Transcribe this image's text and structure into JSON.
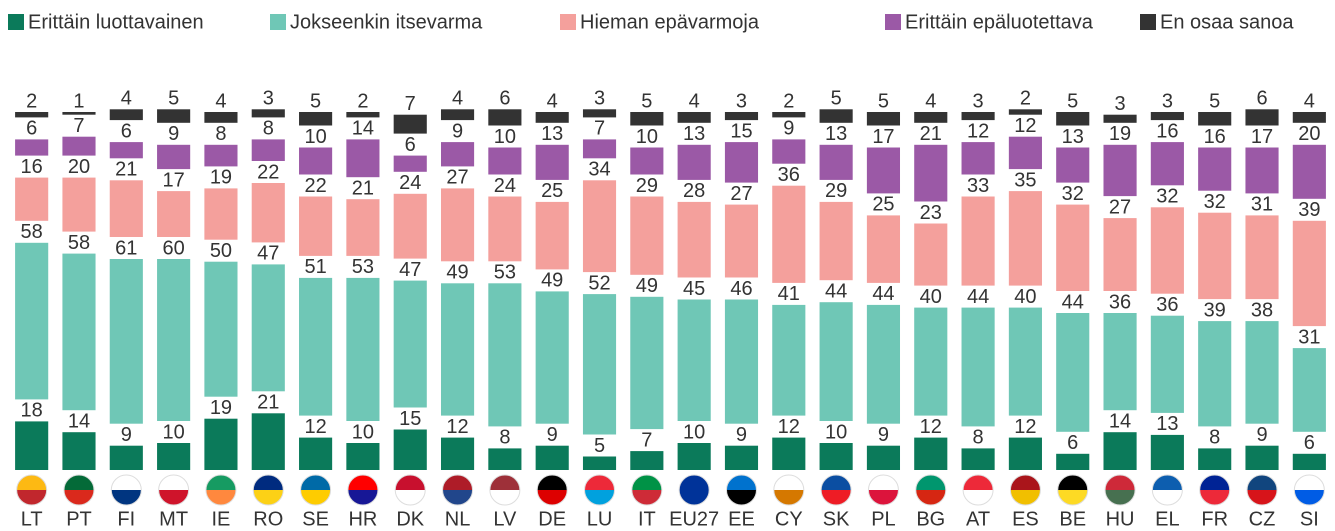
{
  "chart_data": {
    "type": "stacked_bar",
    "categories": [
      "LT",
      "PT",
      "FI",
      "MT",
      "IE",
      "RO",
      "SE",
      "HR",
      "DK",
      "NL",
      "LV",
      "DE",
      "LU",
      "IT",
      "EU27",
      "EE",
      "CY",
      "SK",
      "PL",
      "BG",
      "AT",
      "ES",
      "BE",
      "HU",
      "EL",
      "FR",
      "CZ",
      "SI"
    ],
    "series": [
      {
        "name": "Erittäin luottavainen",
        "color": "#0b7a5a",
        "values": [
          18,
          14,
          9,
          10,
          19,
          21,
          12,
          10,
          15,
          12,
          8,
          9,
          5,
          7,
          10,
          9,
          12,
          10,
          9,
          12,
          8,
          12,
          6,
          14,
          13,
          8,
          9,
          6
        ]
      },
      {
        "name": "Jokseenkin itsevarma",
        "color": "#6fc7b6",
        "values": [
          58,
          58,
          61,
          60,
          50,
          47,
          51,
          53,
          47,
          49,
          53,
          49,
          52,
          49,
          45,
          46,
          41,
          44,
          44,
          40,
          44,
          40,
          44,
          36,
          36,
          39,
          38,
          31
        ]
      },
      {
        "name": "Hieman epävarmoja",
        "color": "#f4a09c",
        "values": [
          16,
          20,
          21,
          17,
          19,
          22,
          22,
          21,
          24,
          27,
          24,
          25,
          34,
          29,
          28,
          27,
          36,
          29,
          25,
          23,
          33,
          35,
          32,
          27,
          32,
          32,
          31,
          39
        ]
      },
      {
        "name": "Erittäin epäluotettava",
        "color": "#9b59a6",
        "values": [
          6,
          7,
          6,
          9,
          8,
          8,
          10,
          14,
          6,
          9,
          10,
          13,
          7,
          10,
          13,
          15,
          9,
          13,
          17,
          21,
          12,
          12,
          13,
          19,
          16,
          16,
          17,
          20
        ]
      },
      {
        "name": "En osaa sanoa",
        "color": "#333333",
        "values": [
          2,
          1,
          4,
          5,
          4,
          3,
          5,
          2,
          7,
          4,
          6,
          4,
          3,
          5,
          4,
          3,
          2,
          5,
          5,
          4,
          3,
          2,
          5,
          3,
          3,
          5,
          6,
          4
        ]
      }
    ]
  }
}
